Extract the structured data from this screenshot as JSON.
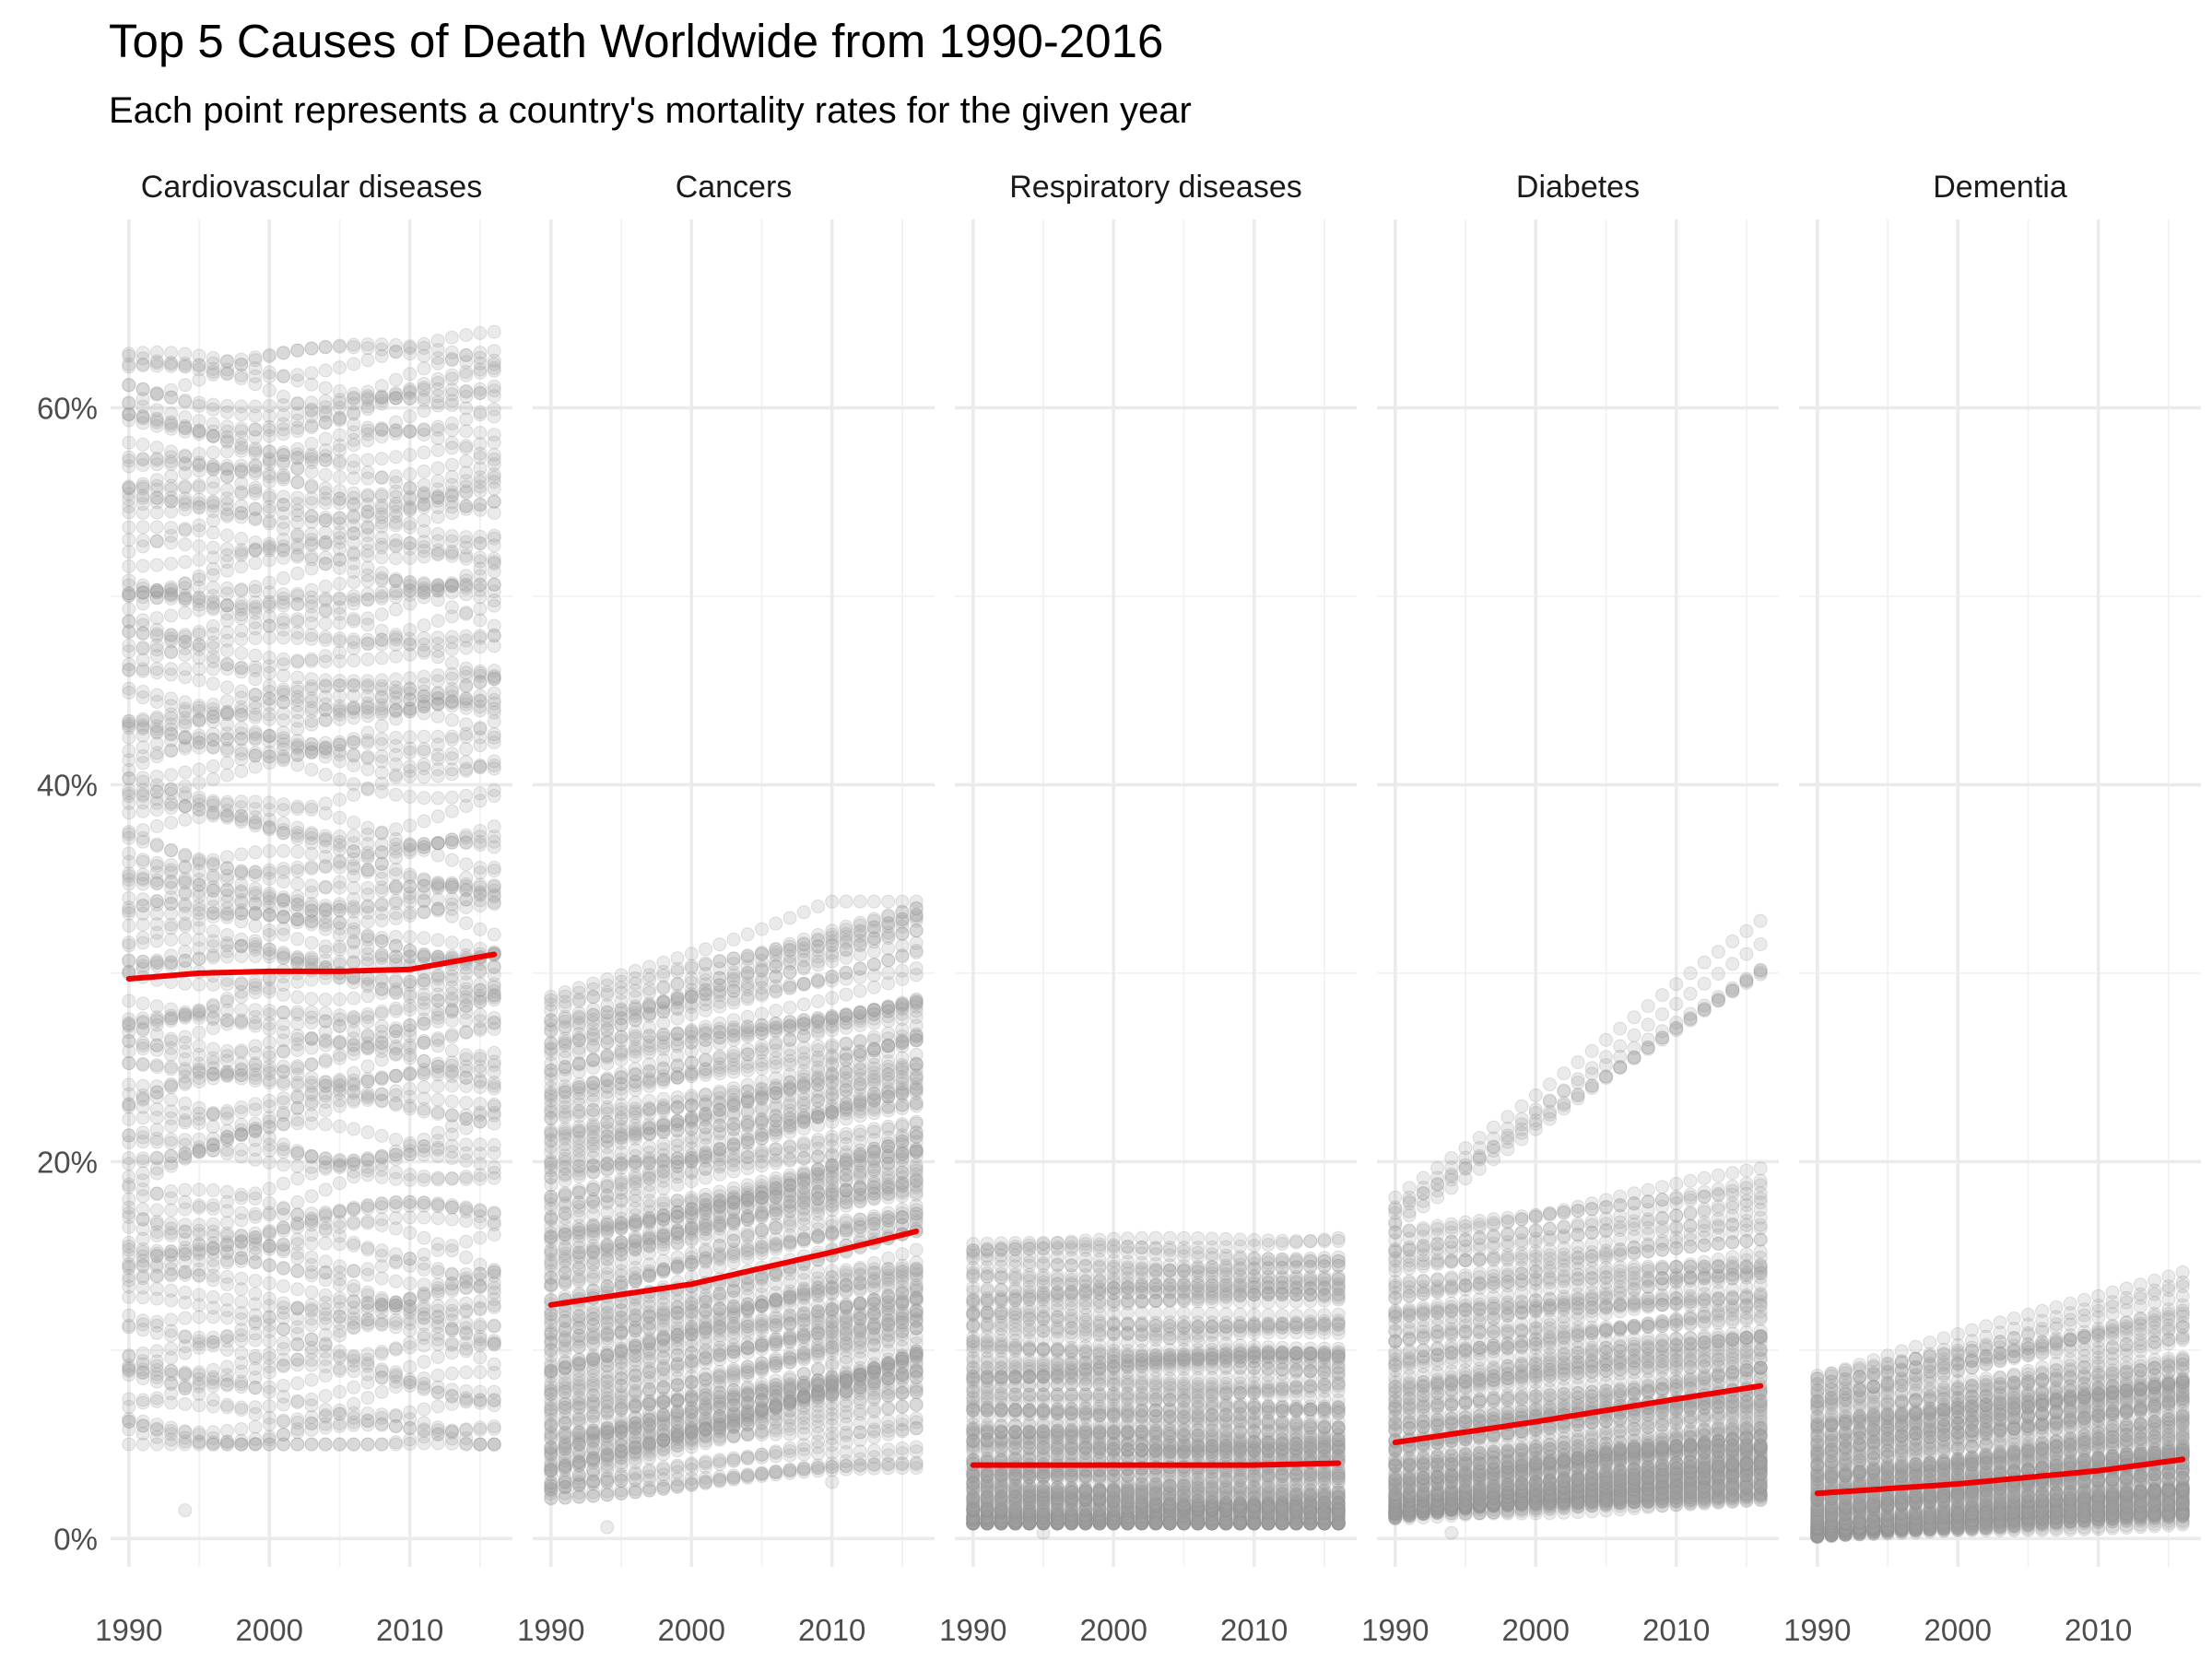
{
  "chart_data": {
    "type": "scatter",
    "title": "Top 5 Causes of Death Worldwide from 1990-2016",
    "subtitle": "Each point represents a country's mortality rates for the given year",
    "xlabel": "",
    "ylabel": "",
    "xlim": [
      1988.7,
      2017.3
    ],
    "ylim": [
      -1.5,
      70
    ],
    "x_ticks": [
      1990,
      2000,
      2010
    ],
    "x_tick_labels": [
      "1990",
      "2000",
      "2010"
    ],
    "y_ticks": [
      0,
      20,
      40,
      60
    ],
    "y_tick_labels": [
      "0%",
      "20%",
      "40%",
      "60%"
    ],
    "grid": true,
    "legend": "none",
    "colors": {
      "points": "#9e9e9e",
      "trend": "#ee0000",
      "grid": "#ebebeb"
    },
    "panels": [
      {
        "name": "Cardiovascular diseases",
        "years": [
          1990,
          2016
        ],
        "trend": [
          [
            1990,
            29.7
          ],
          [
            1995,
            30.0
          ],
          [
            2000,
            30.1
          ],
          [
            2005,
            30.1
          ],
          [
            2010,
            30.2
          ],
          [
            2016,
            31.0
          ]
        ],
        "point_range": [
          5,
          67.5
        ],
        "point_distribution": {
          "median": 30,
          "spread": 13
        },
        "outliers": [
          [
            1994,
            1.5
          ]
        ]
      },
      {
        "name": "Cancers",
        "years": [
          1990,
          2016
        ],
        "trend": [
          [
            1990,
            12.4
          ],
          [
            2000,
            13.5
          ],
          [
            2010,
            15.2
          ],
          [
            2016,
            16.3
          ]
        ],
        "point_range": [
          2,
          33.8
        ],
        "point_distribution": {
          "median": 11,
          "spread": 7
        },
        "outliers": [
          [
            1994,
            0.6
          ],
          [
            2010,
            3.0
          ]
        ]
      },
      {
        "name": "Respiratory diseases",
        "years": [
          1990,
          2016
        ],
        "trend": [
          [
            1990,
            3.9
          ],
          [
            2000,
            3.9
          ],
          [
            2010,
            3.9
          ],
          [
            2016,
            4.0
          ]
        ],
        "point_range": [
          0.8,
          16.5
        ],
        "point_distribution": {
          "median": 3.8,
          "spread": 2.5
        },
        "outliers": [
          [
            1995,
            0.3
          ]
        ]
      },
      {
        "name": "Diabetes",
        "years": [
          1990,
          2016
        ],
        "trend": [
          [
            1990,
            5.1
          ],
          [
            2000,
            6.2
          ],
          [
            2010,
            7.4
          ],
          [
            2016,
            8.1
          ]
        ],
        "point_range": [
          0.8,
          36
        ],
        "point_distribution": {
          "median": 4.5,
          "spread": 3.5
        },
        "outliers": [
          [
            1994,
            0.3
          ]
        ]
      },
      {
        "name": "Dementia",
        "years": [
          1990,
          2016
        ],
        "trend": [
          [
            1990,
            2.4
          ],
          [
            2000,
            2.9
          ],
          [
            2010,
            3.6
          ],
          [
            2016,
            4.2
          ]
        ],
        "point_range": [
          0,
          16.8
        ],
        "point_distribution": {
          "median": 2.5,
          "spread": 2.2
        },
        "outliers": []
      }
    ]
  }
}
